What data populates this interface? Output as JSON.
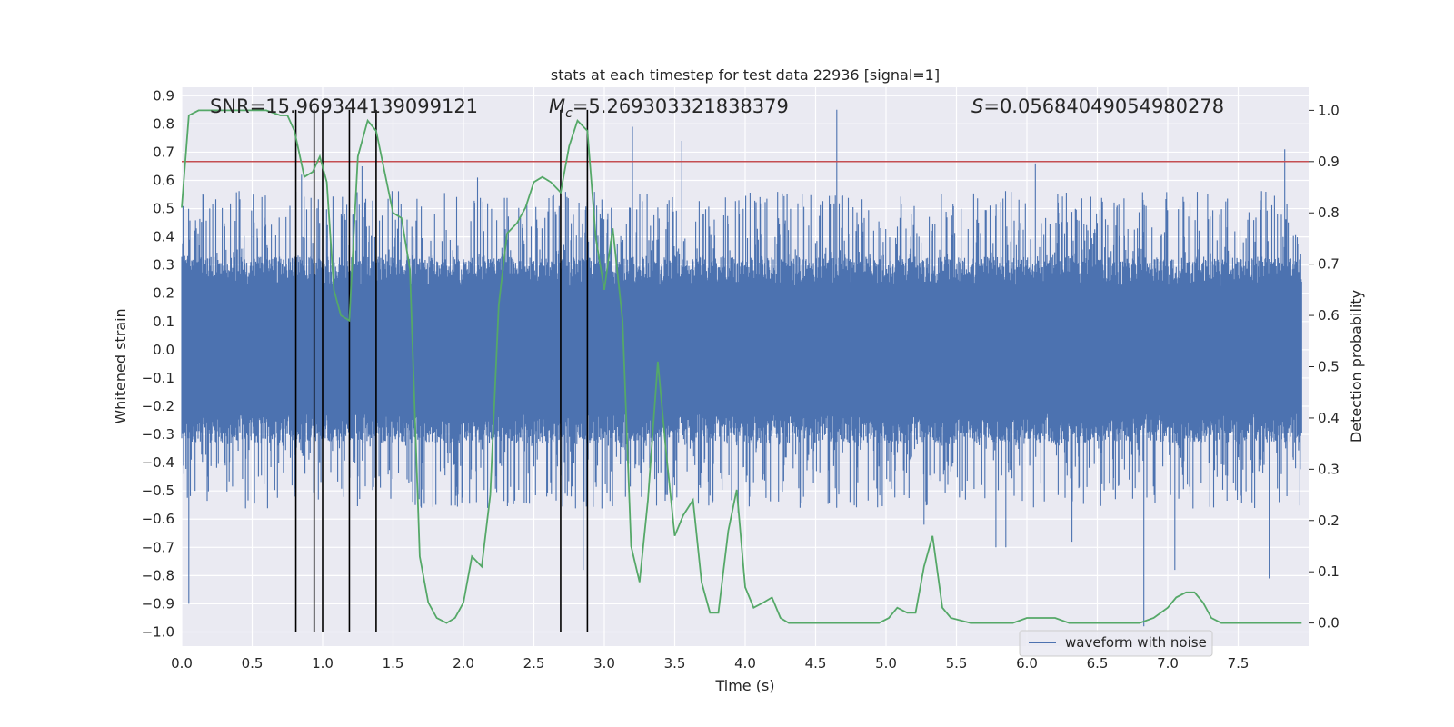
{
  "chart_data": {
    "type": "line",
    "title": "stats at each timestep for test data 22936 [signal=1]",
    "xlabel": "Time (s)",
    "ylabel": "Whitened strain",
    "y2label": "Detection probability",
    "xlim": [
      0.0,
      8.0
    ],
    "ylim": [
      -1.05,
      0.93
    ],
    "y2lim": [
      -0.045,
      1.045
    ],
    "xticks": [
      0.0,
      0.5,
      1.0,
      1.5,
      2.0,
      2.5,
      3.0,
      3.5,
      4.0,
      4.5,
      5.0,
      5.5,
      6.0,
      6.5,
      7.0,
      7.5
    ],
    "yticks": [
      -1.0,
      -0.9,
      -0.8,
      -0.7,
      -0.6,
      -0.5,
      -0.4,
      -0.3,
      -0.2,
      -0.1,
      0.0,
      0.1,
      0.2,
      0.3,
      0.4,
      0.5,
      0.6,
      0.7,
      0.8,
      0.9
    ],
    "y2ticks": [
      0.0,
      0.1,
      0.2,
      0.3,
      0.4,
      0.5,
      0.6,
      0.7,
      0.8,
      0.9,
      1.0
    ],
    "annotations": {
      "snr": "SNR=15.969344139099121",
      "mc_symbol": "M",
      "mc_sub": "c",
      "mc_value": "=5.269303321838379",
      "s_symbol": "S",
      "s_value": "=0.05684049054980278"
    },
    "legend": {
      "label": "waveform with noise",
      "position": "lower right"
    },
    "threshold": {
      "y2": 0.9,
      "color": "#c44e52"
    },
    "vlines": [
      0.81,
      0.94,
      1.0,
      1.19,
      1.38,
      2.69,
      2.88
    ],
    "vline_range": [
      -1.0,
      0.85
    ],
    "spikes": [
      {
        "t": 0.05,
        "v": -0.9
      },
      {
        "t": 0.05,
        "v": -0.64
      },
      {
        "t": 0.8,
        "v": -0.52
      },
      {
        "t": 0.85,
        "v": 0.62
      },
      {
        "t": 2.85,
        "v": -0.78
      },
      {
        "t": 3.2,
        "v": 0.79
      },
      {
        "t": 3.55,
        "v": 0.74
      },
      {
        "t": 4.65,
        "v": 0.85
      },
      {
        "t": 5.78,
        "v": -0.7
      },
      {
        "t": 5.85,
        "v": -0.7
      },
      {
        "t": 6.06,
        "v": 0.66
      },
      {
        "t": 6.32,
        "v": -0.68
      },
      {
        "t": 6.83,
        "v": -0.98
      },
      {
        "t": 7.05,
        "v": -0.78
      },
      {
        "t": 7.72,
        "v": -0.81
      },
      {
        "t": 7.83,
        "v": 0.71
      },
      {
        "t": 3.95,
        "v": -0.58
      },
      {
        "t": 5.27,
        "v": -0.62
      },
      {
        "t": 1.28,
        "v": 0.65
      },
      {
        "t": 2.1,
        "v": 0.61
      }
    ],
    "series": [
      {
        "name": "waveform with noise",
        "axis": "left",
        "color": "#4c72b0",
        "t_range": [
          0.0,
          7.95
        ],
        "typical_amplitude": 0.3,
        "max_amplitude": 0.55
      },
      {
        "name": "detection probability",
        "axis": "right",
        "color": "#55a868",
        "x": [
          0.0,
          0.05,
          0.12,
          0.2,
          0.3,
          0.4,
          0.5,
          0.6,
          0.7,
          0.75,
          0.8,
          0.87,
          0.93,
          0.98,
          1.03,
          1.08,
          1.13,
          1.19,
          1.25,
          1.32,
          1.38,
          1.44,
          1.5,
          1.56,
          1.62,
          1.69,
          1.75,
          1.81,
          1.88,
          1.94,
          2.0,
          2.06,
          2.13,
          2.19,
          2.25,
          2.31,
          2.38,
          2.44,
          2.5,
          2.56,
          2.62,
          2.69,
          2.75,
          2.81,
          2.88,
          2.94,
          3.0,
          3.06,
          3.13,
          3.19,
          3.25,
          3.31,
          3.38,
          3.44,
          3.5,
          3.56,
          3.63,
          3.69,
          3.75,
          3.81,
          3.88,
          3.94,
          4.0,
          4.06,
          4.13,
          4.19,
          4.25,
          4.31,
          4.38,
          4.5,
          4.6,
          4.7,
          4.8,
          4.9,
          4.95,
          5.02,
          5.08,
          5.15,
          5.21,
          5.27,
          5.33,
          5.4,
          5.46,
          5.6,
          5.8,
          5.9,
          6.0,
          6.13,
          6.2,
          6.3,
          6.4,
          6.6,
          6.8,
          6.9,
          7.0,
          7.06,
          7.13,
          7.19,
          7.25,
          7.31,
          7.38,
          7.5,
          7.7,
          7.9,
          7.95
        ],
        "values": [
          0.81,
          0.99,
          1.0,
          1.0,
          1.0,
          1.0,
          1.0,
          1.0,
          0.99,
          0.99,
          0.96,
          0.87,
          0.88,
          0.91,
          0.86,
          0.65,
          0.6,
          0.59,
          0.91,
          0.98,
          0.96,
          0.88,
          0.8,
          0.79,
          0.69,
          0.13,
          0.04,
          0.01,
          0.0,
          0.01,
          0.04,
          0.13,
          0.11,
          0.25,
          0.62,
          0.76,
          0.78,
          0.81,
          0.86,
          0.87,
          0.86,
          0.84,
          0.93,
          0.98,
          0.96,
          0.75,
          0.65,
          0.77,
          0.59,
          0.15,
          0.08,
          0.24,
          0.51,
          0.33,
          0.17,
          0.21,
          0.24,
          0.08,
          0.02,
          0.02,
          0.18,
          0.26,
          0.07,
          0.03,
          0.04,
          0.05,
          0.01,
          0.0,
          0.0,
          0.0,
          0.0,
          0.0,
          0.0,
          0.0,
          0.0,
          0.01,
          0.03,
          0.02,
          0.02,
          0.11,
          0.17,
          0.03,
          0.01,
          0.0,
          0.0,
          0.0,
          0.01,
          0.01,
          0.01,
          0.0,
          0.0,
          0.0,
          0.0,
          0.01,
          0.03,
          0.05,
          0.06,
          0.06,
          0.04,
          0.01,
          0.0,
          0.0,
          0.0,
          0.0,
          0.0
        ]
      }
    ]
  }
}
